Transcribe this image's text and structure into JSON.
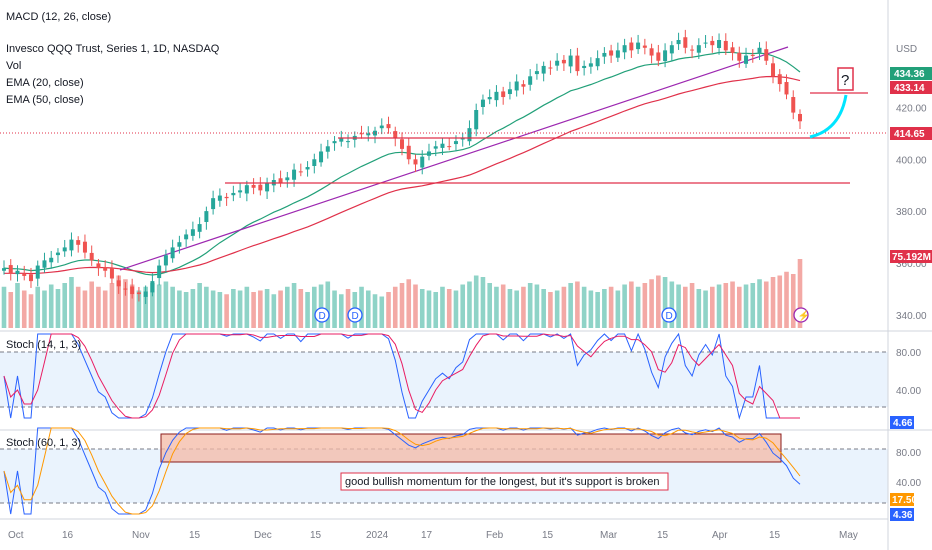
{
  "chart_data": {
    "type": "candlestick",
    "title": "Invesco QQQ Trust, Series 1, 1D, NASDAQ",
    "indicators": [
      "MACD (12, 26, close)",
      "Vol",
      "EMA (20, close)",
      "EMA (50, close)"
    ],
    "currency": "USD",
    "x_ticks": [
      "Oct",
      "16",
      "Nov",
      "15",
      "Dec",
      "15",
      "2024",
      "17",
      "Feb",
      "15",
      "Mar",
      "15",
      "Apr",
      "15",
      "May"
    ],
    "price_axis_ticks": [
      "420.00",
      "400.00",
      "380.00",
      "360.00",
      "340.00"
    ],
    "price_tags": {
      "ema20": "434.36",
      "ema50": "433.14",
      "last": "414.65",
      "volume": "75.192M"
    },
    "price_range": [
      338,
      446
    ],
    "closes": [
      358,
      356,
      357,
      355,
      353,
      359,
      361,
      362,
      364,
      366,
      369,
      367,
      364,
      361,
      358,
      357,
      354,
      351,
      350,
      348,
      348,
      349,
      353,
      359,
      363,
      366,
      368,
      371,
      373,
      375,
      380,
      385,
      386,
      385,
      387,
      388,
      390,
      389,
      388,
      391,
      392,
      391,
      393,
      396,
      395,
      397,
      400,
      403,
      405,
      407,
      408,
      407,
      409,
      410,
      410,
      411,
      413,
      412,
      408,
      404,
      400,
      398,
      401,
      403,
      405,
      406,
      405,
      407,
      408,
      412,
      419,
      423,
      424,
      426,
      424,
      427,
      430,
      428,
      432,
      434,
      436,
      435,
      438,
      437,
      440,
      434,
      436,
      437,
      439,
      441,
      440,
      442,
      444,
      442,
      445,
      443,
      440,
      438,
      442,
      444,
      446,
      443,
      442,
      444,
      445,
      444,
      446,
      442,
      441,
      438,
      440,
      440,
      443,
      438,
      432,
      429,
      425,
      418,
      414.65
    ],
    "volumes": [
      0.55,
      0.48,
      0.6,
      0.5,
      0.45,
      0.55,
      0.5,
      0.58,
      0.52,
      0.6,
      0.68,
      0.55,
      0.5,
      0.62,
      0.55,
      0.5,
      0.6,
      0.7,
      0.65,
      0.58,
      0.5,
      0.55,
      0.6,
      0.58,
      0.62,
      0.55,
      0.5,
      0.48,
      0.52,
      0.6,
      0.55,
      0.5,
      0.48,
      0.45,
      0.52,
      0.5,
      0.55,
      0.48,
      0.5,
      0.52,
      0.45,
      0.5,
      0.55,
      0.6,
      0.52,
      0.48,
      0.55,
      0.58,
      0.62,
      0.5,
      0.45,
      0.52,
      0.48,
      0.55,
      0.5,
      0.45,
      0.42,
      0.48,
      0.55,
      0.6,
      0.65,
      0.58,
      0.52,
      0.5,
      0.48,
      0.55,
      0.52,
      0.5,
      0.58,
      0.62,
      0.7,
      0.68,
      0.6,
      0.55,
      0.58,
      0.52,
      0.5,
      0.55,
      0.6,
      0.58,
      0.52,
      0.48,
      0.5,
      0.55,
      0.6,
      0.62,
      0.55,
      0.5,
      0.48,
      0.52,
      0.55,
      0.5,
      0.58,
      0.62,
      0.55,
      0.6,
      0.65,
      0.7,
      0.68,
      0.62,
      0.58,
      0.55,
      0.6,
      0.52,
      0.5,
      0.55,
      0.58,
      0.6,
      0.62,
      0.55,
      0.58,
      0.6,
      0.65,
      0.62,
      0.68,
      0.7,
      0.75,
      0.72,
      0.92
    ],
    "stoch_14": {
      "label": "Stoch (14, 1, 3)",
      "k_last": "4.66",
      "levels": [
        "80.00",
        "40.00"
      ]
    },
    "stoch_60": {
      "label": "Stoch (60, 1, 3)",
      "k_last": "4.36",
      "d_last": "17.50",
      "levels": [
        "80.00",
        "40.00"
      ]
    },
    "annotations": {
      "note": "good bullish momentum for the longest, but it's support is broken",
      "question": "?",
      "dividend_marker": "D"
    },
    "support_lines": [
      414,
      394,
      433
    ]
  }
}
